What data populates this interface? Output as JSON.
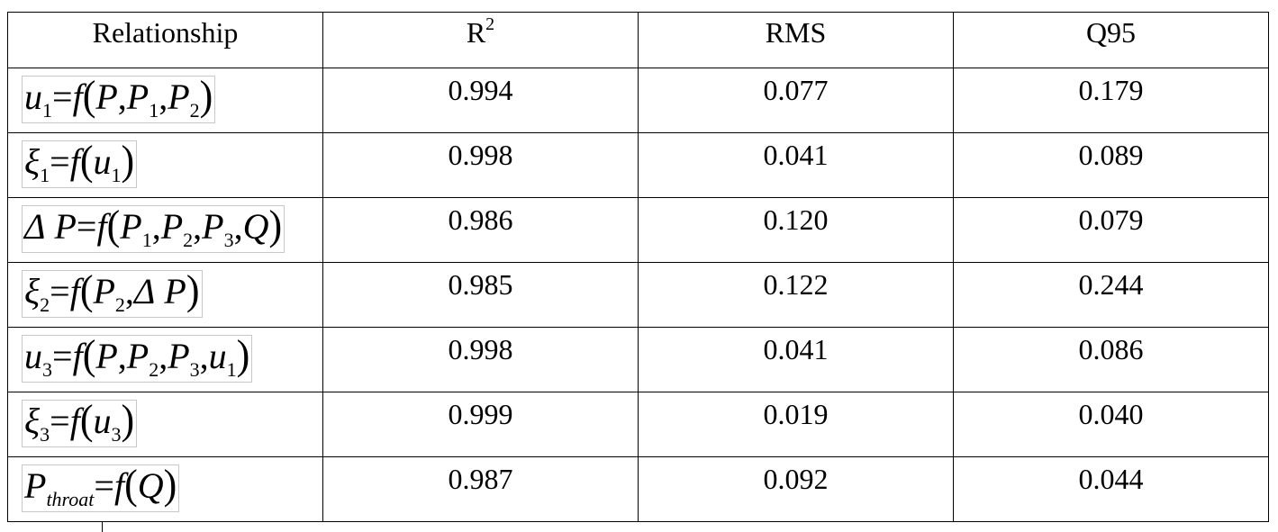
{
  "table": {
    "headers": [
      "Relationship",
      "R",
      "RMS",
      "Q95"
    ],
    "r_superscript": "2",
    "rows": [
      {
        "r2": "0.994",
        "rms": "0.077",
        "q95": "0.179"
      },
      {
        "r2": "0.998",
        "rms": "0.041",
        "q95": "0.089"
      },
      {
        "r2": "0.986",
        "rms": "0.120",
        "q95": "0.079"
      },
      {
        "r2": "0.985",
        "rms": "0.122",
        "q95": "0.244"
      },
      {
        "r2": "0.998",
        "rms": "0.041",
        "q95": "0.086"
      },
      {
        "r2": "0.999",
        "rms": "0.019",
        "q95": "0.040"
      },
      {
        "r2": "0.987",
        "rms": "0.092",
        "q95": "0.044"
      }
    ],
    "formulas": [
      "u1=f(P,P1,P2)",
      "ξ1=f(u1)",
      "ΔP=f(P1,P2,P3,Q)",
      "ξ2=f(P2,ΔP)",
      "u3=f(P,P2,P3,u1)",
      "ξ3=f(u3)",
      "Pthroat=f(Q)"
    ]
  }
}
